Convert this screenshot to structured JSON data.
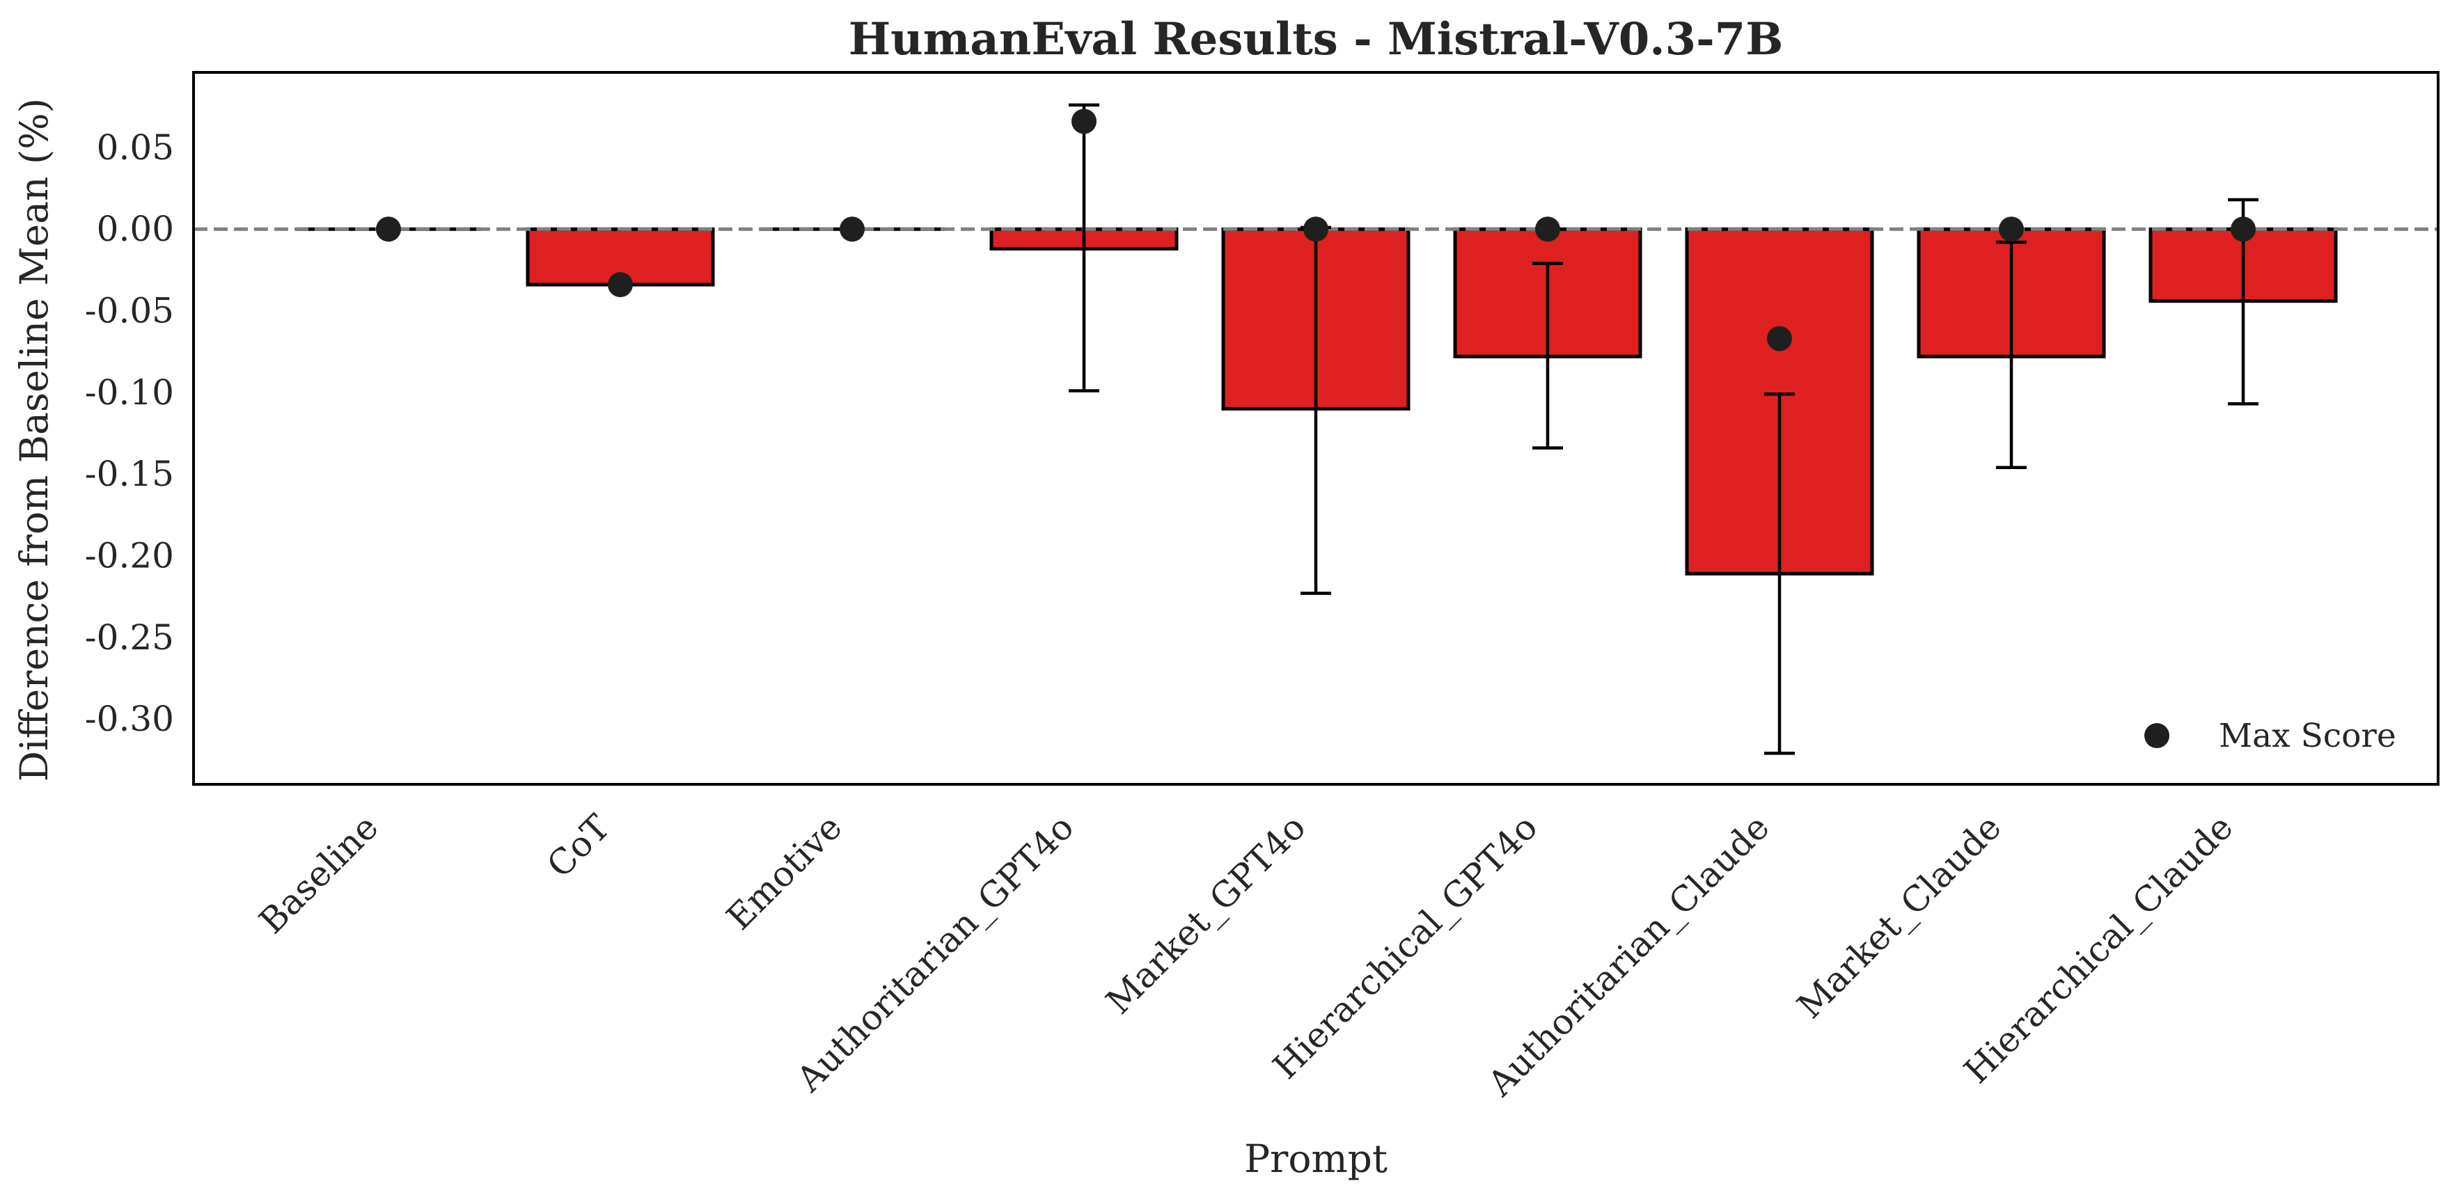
{
  "chart_data": {
    "type": "bar",
    "title": "HumanEval Results - Mistral-V0.3-7B",
    "xlabel": "Prompt",
    "ylabel": "Difference from Baseline Mean (%)",
    "categories": [
      "Baseline",
      "CoT",
      "Emotive",
      "Authoritarian_GPT4o",
      "Market_GPT4o",
      "Hierarchical_GPT4o",
      "Authoritarian_Claude",
      "Market_Claude",
      "Hierarchical_Claude"
    ],
    "series": [
      {
        "values": [
          0.0,
          -0.034,
          0.0,
          -0.012,
          -0.11,
          -0.078,
          -0.211,
          -0.078,
          -0.044
        ],
        "error_bars": [
          null,
          null,
          null,
          [
            -0.099,
            0.076
          ],
          [
            -0.223,
            0.001
          ],
          [
            -0.134,
            -0.021
          ],
          [
            -0.321,
            -0.101
          ],
          [
            -0.146,
            -0.008
          ],
          [
            -0.107,
            0.018
          ]
        ]
      },
      {
        "name": "Max Score",
        "values": [
          0.0,
          -0.034,
          0.0,
          0.066,
          0.0,
          0.0,
          -0.067,
          0.0,
          0.0
        ]
      }
    ],
    "yticks": [
      0.05,
      0.0,
      -0.05,
      -0.1,
      -0.15,
      -0.2,
      -0.25,
      -0.3
    ],
    "ytick_labels": [
      "0.05",
      "0.00",
      "-0.05",
      "-0.10",
      "-0.15",
      "-0.20",
      "-0.25",
      "-0.30"
    ],
    "ylim": [
      -0.34,
      0.096
    ],
    "reference_line": 0.0,
    "grid": false,
    "legend_position": "lower-right",
    "colors": {
      "bar": "#de2020",
      "bar_edge": "#000000",
      "marker": "#1f1f1f",
      "reference_line": "#808080",
      "text": "#262626"
    }
  }
}
